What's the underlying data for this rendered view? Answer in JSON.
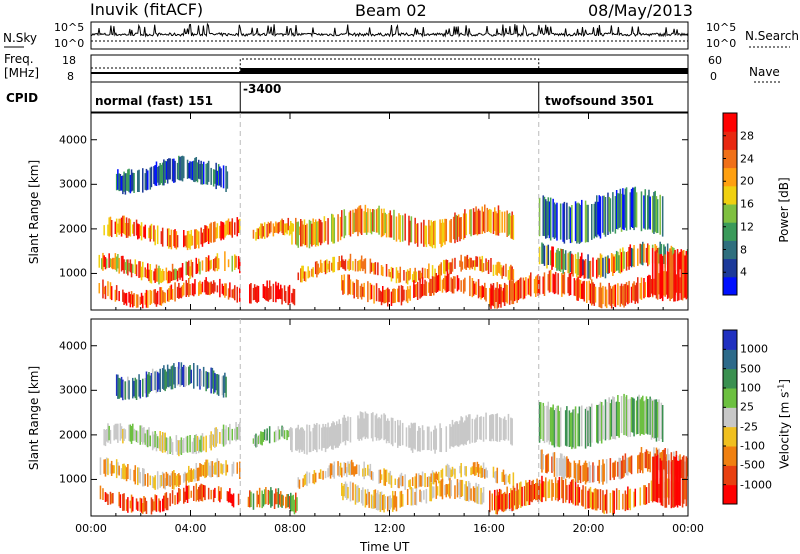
{
  "header": {
    "station": "Inuvik (fitACF)",
    "beam": "Beam 02",
    "date": "08/May/2013"
  },
  "status": {
    "left_nsky": "N.Sky",
    "right_nsearch": "N.Search",
    "freq_label_1": "Freq.",
    "freq_label_2": "[MHz]",
    "nave": "Nave",
    "cpid": "CPID",
    "nsky_ticks": [
      "10^5",
      "10^0"
    ],
    "nsearch_ticks": [
      "10^5",
      "10^0"
    ],
    "freq_ticks": [
      "18",
      "8"
    ],
    "nave_ticks": [
      "60",
      "0"
    ],
    "cpid_segments": [
      {
        "label": "normal (fast) 151",
        "from": 0,
        "to": 6
      },
      {
        "label": "-3400",
        "from": 6,
        "to": 18
      },
      {
        "label": "twofsound 3501",
        "from": 18,
        "to": 24
      }
    ]
  },
  "chart_data": [
    {
      "type": "heatmap",
      "quantity": "Power",
      "xlabel": "",
      "ylabel": "Slant Range [km]",
      "xlim": [
        0,
        24
      ],
      "ylim": [
        180,
        4600
      ],
      "yticks": [
        1000,
        2000,
        3000,
        4000
      ],
      "colorbar": {
        "label": "Power [dB]",
        "ticks": [
          4,
          8,
          12,
          16,
          20,
          24,
          28
        ],
        "range": [
          0,
          32
        ],
        "colors": [
          "#0010ff",
          "#1c3a9a",
          "#2f6f7e",
          "#3a9a5a",
          "#7fc040",
          "#f0d010",
          "#ffa010",
          "#f07018",
          "#e82810",
          "#ff0000"
        ]
      }
    },
    {
      "type": "heatmap",
      "quantity": "Velocity",
      "xlabel": "Time UT",
      "ylabel": "Slant Range [km]",
      "xlim": [
        0,
        24
      ],
      "ylim": [
        180,
        4600
      ],
      "xticks": [
        "00:00",
        "04:00",
        "08:00",
        "12:00",
        "16:00",
        "20:00",
        "00:00"
      ],
      "yticks": [
        1000,
        2000,
        3000,
        4000
      ],
      "colorbar": {
        "label": "Velocity [m s^-1]",
        "ticks": [
          "1000",
          "500",
          "100",
          "25",
          "-25",
          "-100",
          "-500",
          "-1000"
        ],
        "colors": [
          "#2030c0",
          "#2d6a8a",
          "#3a9050",
          "#6cc040",
          "#c8c8c8",
          "#f0c020",
          "#f08010",
          "#e84010",
          "#ff0000"
        ]
      }
    }
  ]
}
